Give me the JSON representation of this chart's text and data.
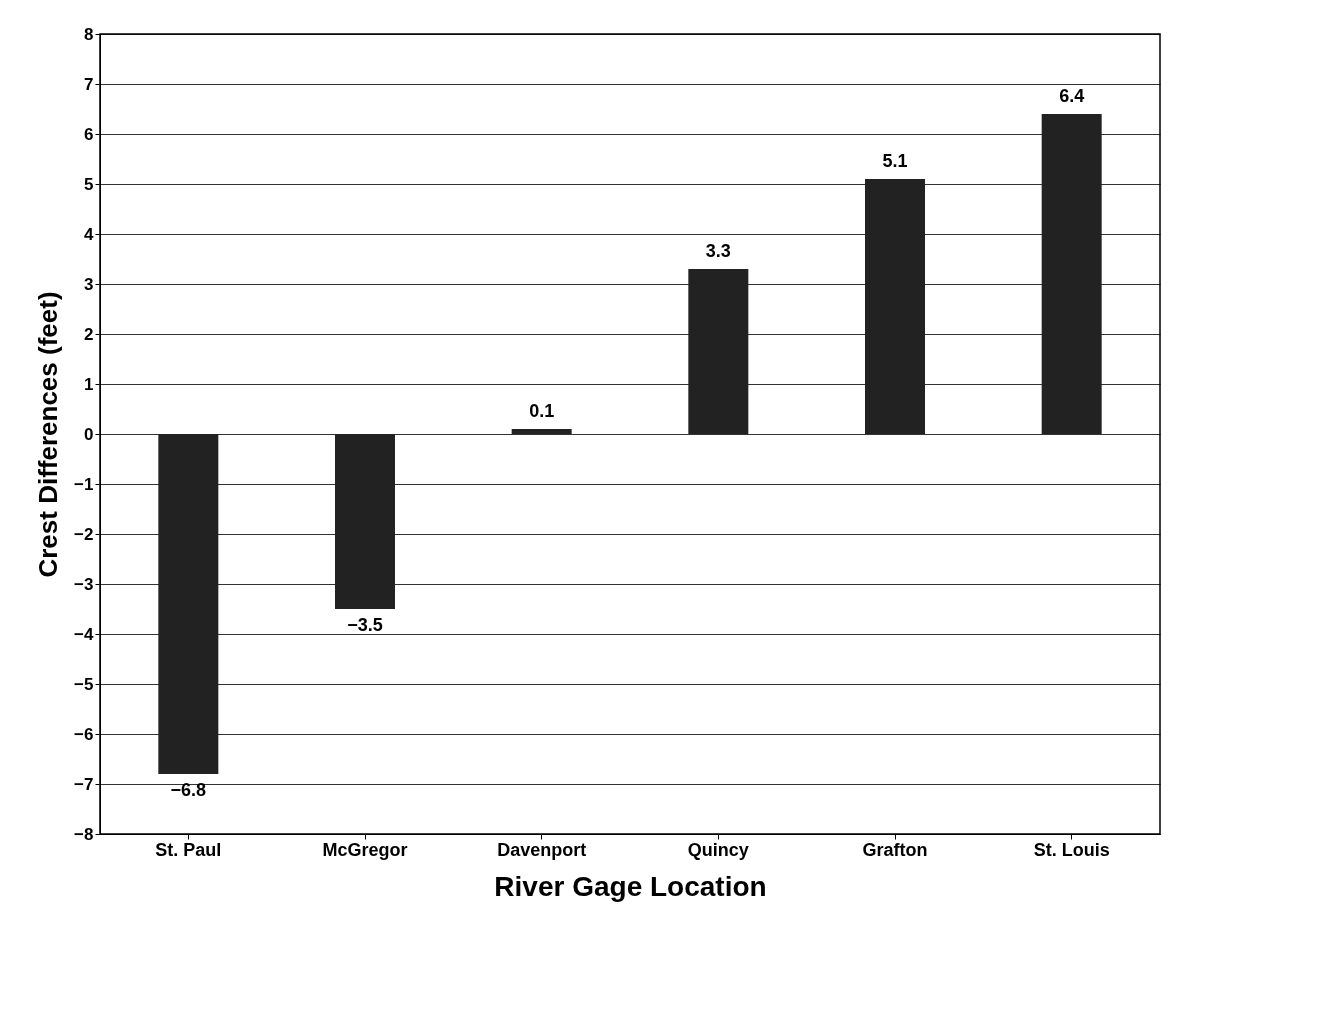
{
  "chart_data": {
    "type": "bar",
    "xlabel": "River Gage Location",
    "ylabel": "Crest Differences (feet)",
    "categories": [
      "St. Paul",
      "McGregor",
      "Davenport",
      "Quincy",
      "Grafton",
      "St. Louis"
    ],
    "values": [
      -6.8,
      -3.5,
      0.1,
      3.3,
      5.1,
      6.4
    ],
    "color": "#222222",
    "ylim": [
      -8,
      8
    ],
    "yticks": [
      -8,
      -7,
      -6,
      -5,
      -4,
      -3,
      -2,
      -1,
      0,
      1,
      2,
      3,
      4,
      5,
      6,
      7,
      8
    ],
    "grid": "y",
    "data_labels": true
  }
}
